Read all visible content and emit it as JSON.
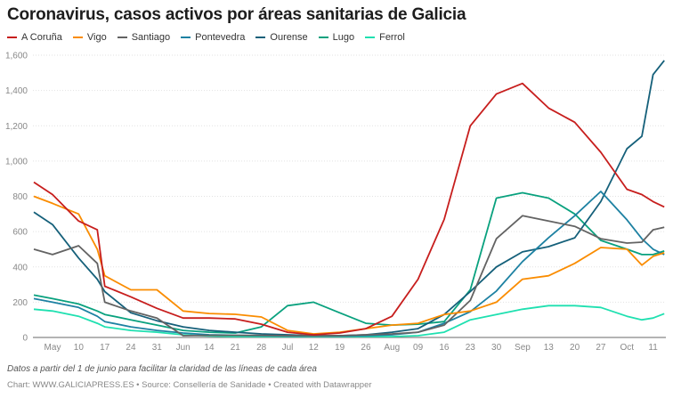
{
  "title": "Coronavirus, casos activos por áreas sanitarias de Galicia",
  "note": "Datos a partir del 1 de junio para facilitar la claridad de las líneas de cada área",
  "credits": "Chart: WWW.GALICIAPRESS.ES • Source: Consellería de Sanidade • Created with Datawrapper",
  "chart_data": {
    "type": "line",
    "title": "Coronavirus, casos activos por áreas sanitarias de Galicia",
    "xlabel": "",
    "ylabel": "",
    "ylim": [
      0,
      1600
    ],
    "grid": true,
    "legend": "top-left",
    "y_ticks": [
      0,
      200,
      400,
      600,
      800,
      1000,
      1200,
      1400,
      1600
    ],
    "y_tick_labels": [
      "0",
      "200",
      "400",
      "600",
      "800",
      "1,000",
      "1,200",
      "1,400",
      "1,600"
    ],
    "x_ticks": [
      {
        "date": "2020-05-03",
        "label": "May"
      },
      {
        "date": "2020-05-10",
        "label": "10"
      },
      {
        "date": "2020-05-17",
        "label": "17"
      },
      {
        "date": "2020-05-24",
        "label": "24"
      },
      {
        "date": "2020-05-31",
        "label": "31"
      },
      {
        "date": "2020-06-07",
        "label": "Jun"
      },
      {
        "date": "2020-06-14",
        "label": "14"
      },
      {
        "date": "2020-06-21",
        "label": "21"
      },
      {
        "date": "2020-06-28",
        "label": "28"
      },
      {
        "date": "2020-07-05",
        "label": "Jul"
      },
      {
        "date": "2020-07-12",
        "label": "12"
      },
      {
        "date": "2020-07-19",
        "label": "19"
      },
      {
        "date": "2020-07-26",
        "label": "26"
      },
      {
        "date": "2020-08-02",
        "label": "Aug"
      },
      {
        "date": "2020-08-09",
        "label": "09"
      },
      {
        "date": "2020-08-16",
        "label": "16"
      },
      {
        "date": "2020-08-23",
        "label": "23"
      },
      {
        "date": "2020-08-30",
        "label": "30"
      },
      {
        "date": "2020-09-06",
        "label": "Sep"
      },
      {
        "date": "2020-09-13",
        "label": "13"
      },
      {
        "date": "2020-09-20",
        "label": "20"
      },
      {
        "date": "2020-09-27",
        "label": "27"
      },
      {
        "date": "2020-10-04",
        "label": "Oct"
      },
      {
        "date": "2020-10-11",
        "label": "11"
      }
    ],
    "x": [
      "2020-04-28",
      "2020-05-03",
      "2020-05-10",
      "2020-05-15",
      "2020-05-17",
      "2020-05-24",
      "2020-05-31",
      "2020-06-07",
      "2020-06-14",
      "2020-06-21",
      "2020-06-28",
      "2020-07-05",
      "2020-07-12",
      "2020-07-19",
      "2020-07-26",
      "2020-08-02",
      "2020-08-09",
      "2020-08-16",
      "2020-08-23",
      "2020-08-30",
      "2020-09-06",
      "2020-09-13",
      "2020-09-20",
      "2020-09-27",
      "2020-10-04",
      "2020-10-08",
      "2020-10-11",
      "2020-10-14"
    ],
    "series": [
      {
        "name": "A Coruña",
        "color": "#c71e1d",
        "values": [
          880,
          810,
          660,
          610,
          290,
          230,
          165,
          110,
          110,
          105,
          75,
          30,
          15,
          25,
          50,
          120,
          330,
          670,
          1200,
          1380,
          1440,
          1300,
          1220,
          1050,
          840,
          810,
          770,
          740
        ]
      },
      {
        "name": "Vigo",
        "color": "#fa8c00",
        "values": [
          800,
          760,
          700,
          500,
          350,
          270,
          270,
          150,
          136,
          131,
          116,
          40,
          20,
          30,
          50,
          70,
          80,
          130,
          150,
          200,
          330,
          350,
          420,
          510,
          500,
          410,
          460,
          480
        ]
      },
      {
        "name": "Santiago",
        "color": "#636363",
        "values": [
          500,
          470,
          520,
          420,
          200,
          150,
          110,
          10,
          12,
          12,
          12,
          10,
          10,
          10,
          15,
          20,
          30,
          70,
          210,
          560,
          690,
          660,
          630,
          560,
          535,
          540,
          610,
          625
        ]
      },
      {
        "name": "Pontevedra",
        "color": "#1d81a2",
        "values": [
          220,
          200,
          170,
          120,
          90,
          60,
          40,
          25,
          15,
          12,
          10,
          8,
          8,
          8,
          10,
          15,
          30,
          80,
          146,
          263,
          430,
          566,
          690,
          828,
          667,
          560,
          500,
          470
        ]
      },
      {
        "name": "Ourense",
        "color": "#15607a",
        "values": [
          710,
          640,
          450,
          330,
          260,
          140,
          95,
          60,
          40,
          30,
          20,
          15,
          10,
          10,
          15,
          30,
          50,
          130,
          260,
          400,
          485,
          515,
          565,
          770,
          1070,
          1140,
          1490,
          1570
        ]
      },
      {
        "name": "Lugo",
        "color": "#09a17e",
        "values": [
          240,
          220,
          190,
          150,
          130,
          100,
          70,
          40,
          30,
          25,
          60,
          180,
          200,
          140,
          80,
          70,
          75,
          90,
          270,
          790,
          820,
          790,
          700,
          550,
          500,
          470,
          470,
          490
        ]
      },
      {
        "name": "Ferrol",
        "color": "#1fe0b0",
        "values": [
          160,
          150,
          120,
          80,
          60,
          40,
          30,
          15,
          8,
          5,
          5,
          5,
          5,
          5,
          5,
          5,
          10,
          30,
          100,
          130,
          160,
          180,
          180,
          170,
          120,
          100,
          110,
          135
        ]
      }
    ]
  }
}
